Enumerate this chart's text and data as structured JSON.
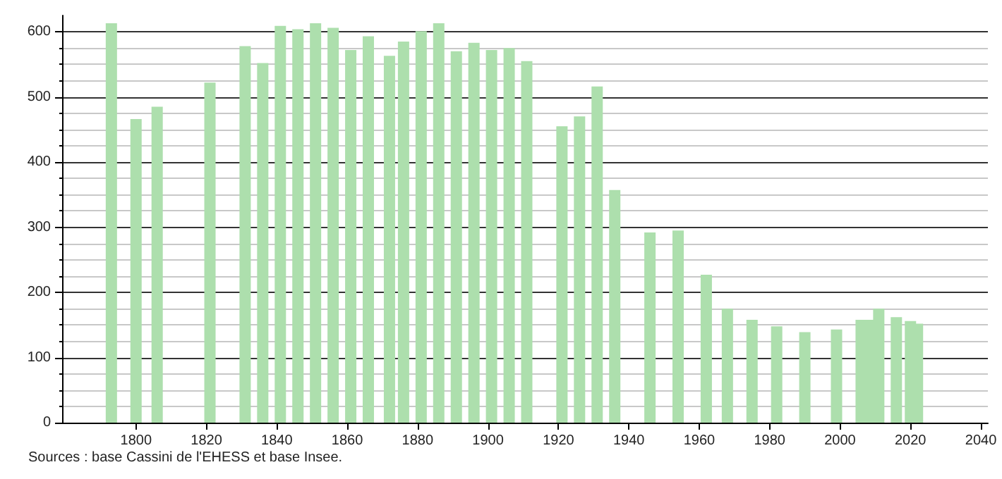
{
  "chart_data": {
    "type": "bar",
    "x": [
      1793,
      1800,
      1806,
      1821,
      1831,
      1836,
      1841,
      1846,
      1851,
      1856,
      1861,
      1866,
      1872,
      1876,
      1881,
      1886,
      1891,
      1896,
      1901,
      1906,
      1911,
      1921,
      1926,
      1931,
      1936,
      1946,
      1954,
      1962,
      1968,
      1975,
      1982,
      1990,
      1999,
      2006,
      2008,
      2011,
      2016,
      2020,
      2022
    ],
    "values": [
      613,
      466,
      485,
      522,
      578,
      552,
      609,
      604,
      613,
      606,
      572,
      593,
      563,
      585,
      601,
      613,
      570,
      583,
      572,
      575,
      555,
      455,
      470,
      516,
      357,
      292,
      295,
      227,
      175,
      158,
      148,
      139,
      143,
      158,
      158,
      175,
      162,
      156,
      152
    ],
    "color": "#addfad",
    "xlim": [
      1779,
      2042
    ],
    "xticks": [
      1800,
      1820,
      1840,
      1860,
      1880,
      1900,
      1920,
      1940,
      1960,
      1980,
      2000,
      2020,
      2040
    ],
    "ylim": [
      0,
      625
    ],
    "yticks": [
      0,
      100,
      200,
      300,
      400,
      500,
      600
    ],
    "grid": "y",
    "annotations": [
      "Sources : base Cassini de l'EHESS et base Insee."
    ]
  }
}
